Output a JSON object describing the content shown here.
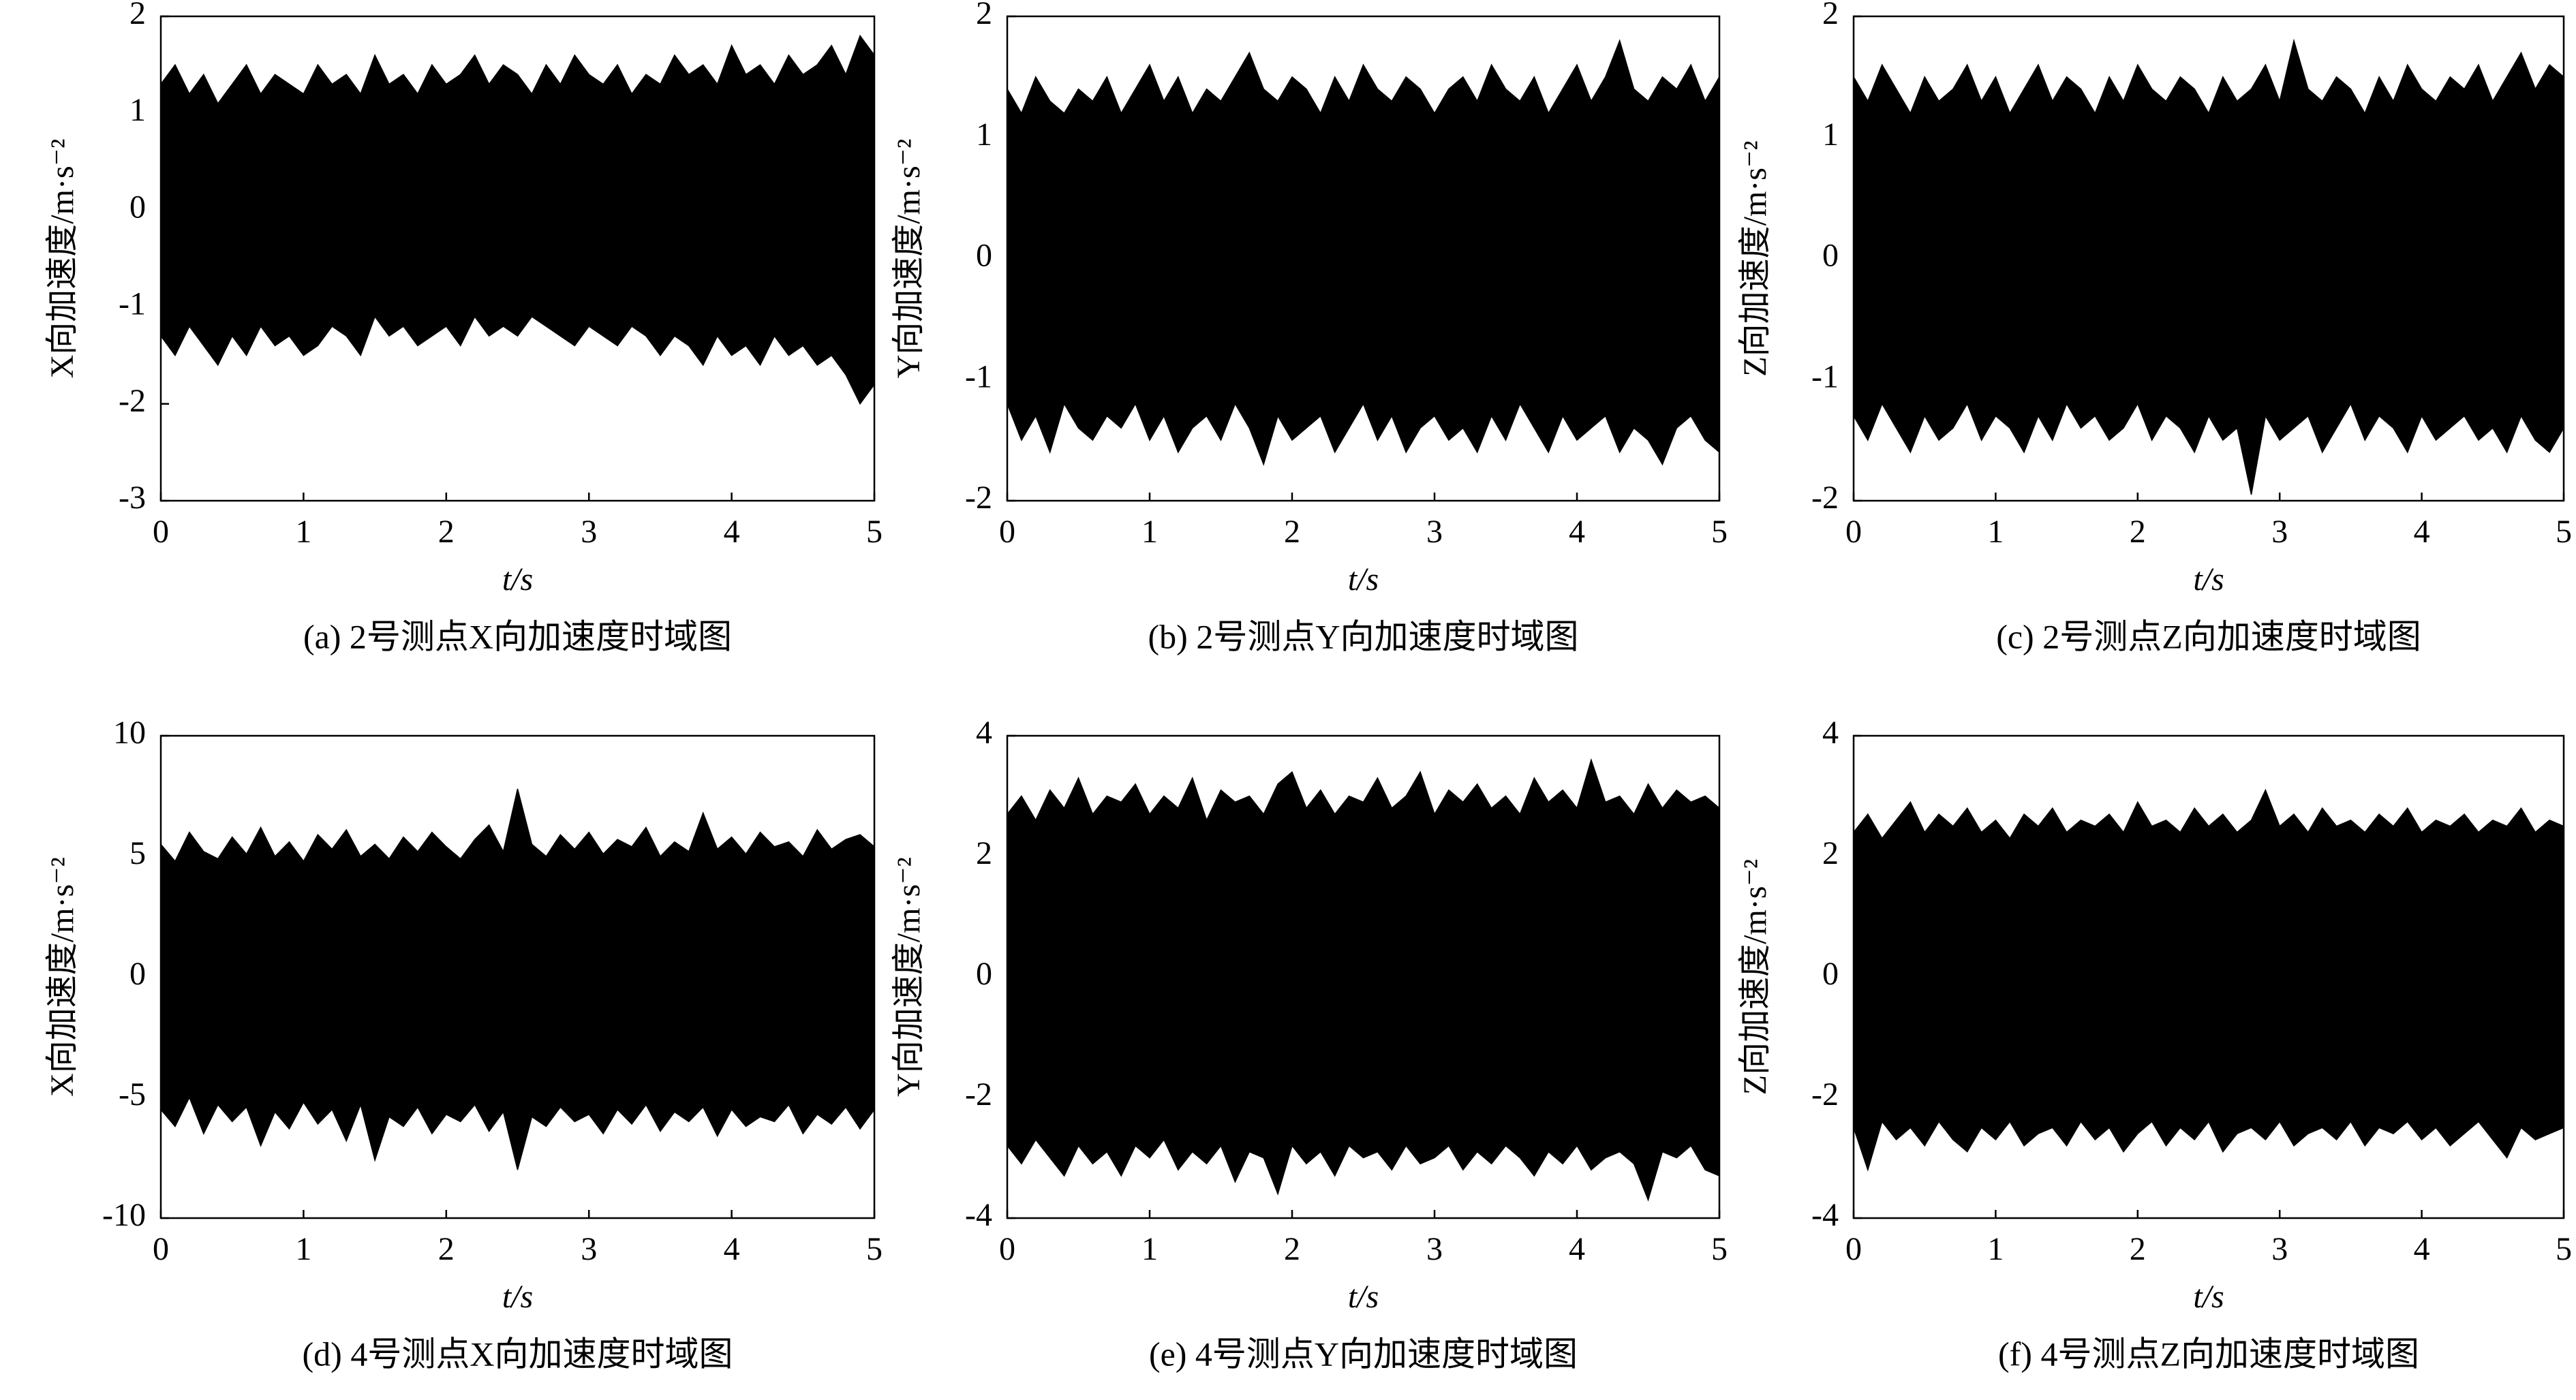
{
  "chart_data": [
    {
      "type": "area",
      "color": "#000000",
      "caption": "(a) 2号测点X向加速度时域图",
      "x_label": "t/s",
      "y_label": "X向加速度/m·s⁻²",
      "xlim": [
        0,
        5
      ],
      "xticks": [
        0,
        1,
        2,
        3,
        4,
        5
      ],
      "ylim": [
        -3,
        2
      ],
      "yticks": [
        -3,
        -2,
        -1,
        0,
        1,
        2
      ],
      "x": [
        0,
        0.1,
        0.2,
        0.3,
        0.4,
        0.5,
        0.6,
        0.7,
        0.8,
        0.9,
        1,
        1.1,
        1.2,
        1.3,
        1.4,
        1.5,
        1.6,
        1.7,
        1.8,
        1.9,
        2,
        2.1,
        2.2,
        2.3,
        2.4,
        2.5,
        2.6,
        2.7,
        2.8,
        2.9,
        3,
        3.1,
        3.2,
        3.3,
        3.4,
        3.5,
        3.6,
        3.7,
        3.8,
        3.9,
        4,
        4.1,
        4.2,
        4.3,
        4.4,
        4.5,
        4.6,
        4.7,
        4.8,
        4.9,
        5
      ],
      "upper": [
        1.3,
        1.5,
        1.2,
        1.4,
        1.1,
        1.3,
        1.5,
        1.2,
        1.4,
        1.3,
        1.2,
        1.5,
        1.3,
        1.4,
        1.2,
        1.6,
        1.3,
        1.4,
        1.2,
        1.5,
        1.3,
        1.4,
        1.6,
        1.3,
        1.5,
        1.4,
        1.2,
        1.5,
        1.3,
        1.6,
        1.4,
        1.3,
        1.5,
        1.2,
        1.4,
        1.3,
        1.6,
        1.4,
        1.5,
        1.3,
        1.7,
        1.4,
        1.5,
        1.3,
        1.6,
        1.4,
        1.5,
        1.7,
        1.4,
        1.8,
        1.6
      ],
      "lower": [
        -1.3,
        -1.5,
        -1.2,
        -1.4,
        -1.6,
        -1.3,
        -1.5,
        -1.2,
        -1.4,
        -1.3,
        -1.5,
        -1.4,
        -1.2,
        -1.3,
        -1.5,
        -1.1,
        -1.3,
        -1.2,
        -1.4,
        -1.3,
        -1.2,
        -1.4,
        -1.1,
        -1.3,
        -1.2,
        -1.3,
        -1.1,
        -1.2,
        -1.3,
        -1.4,
        -1.2,
        -1.3,
        -1.4,
        -1.2,
        -1.3,
        -1.5,
        -1.3,
        -1.4,
        -1.6,
        -1.3,
        -1.5,
        -1.4,
        -1.6,
        -1.3,
        -1.5,
        -1.4,
        -1.6,
        -1.5,
        -1.7,
        -2.0,
        -1.8
      ]
    },
    {
      "type": "area",
      "color": "#000000",
      "caption": "(b) 2号测点Y向加速度时域图",
      "x_label": "t/s",
      "y_label": "Y向加速度/m·s⁻²",
      "xlim": [
        0,
        5
      ],
      "xticks": [
        0,
        1,
        2,
        3,
        4,
        5
      ],
      "ylim": [
        -2,
        2
      ],
      "yticks": [
        -2,
        -1,
        0,
        1,
        2
      ],
      "x": [
        0,
        0.1,
        0.2,
        0.3,
        0.4,
        0.5,
        0.6,
        0.7,
        0.8,
        0.9,
        1,
        1.1,
        1.2,
        1.3,
        1.4,
        1.5,
        1.6,
        1.7,
        1.8,
        1.9,
        2,
        2.1,
        2.2,
        2.3,
        2.4,
        2.5,
        2.6,
        2.7,
        2.8,
        2.9,
        3,
        3.1,
        3.2,
        3.3,
        3.4,
        3.5,
        3.6,
        3.7,
        3.8,
        3.9,
        4,
        4.1,
        4.2,
        4.3,
        4.4,
        4.5,
        4.6,
        4.7,
        4.8,
        4.9,
        5
      ],
      "upper": [
        1.4,
        1.2,
        1.5,
        1.3,
        1.2,
        1.4,
        1.3,
        1.5,
        1.2,
        1.4,
        1.6,
        1.3,
        1.5,
        1.2,
        1.4,
        1.3,
        1.5,
        1.7,
        1.4,
        1.3,
        1.5,
        1.4,
        1.2,
        1.5,
        1.3,
        1.6,
        1.4,
        1.3,
        1.5,
        1.4,
        1.2,
        1.4,
        1.5,
        1.3,
        1.6,
        1.4,
        1.3,
        1.5,
        1.2,
        1.4,
        1.6,
        1.3,
        1.5,
        1.8,
        1.4,
        1.3,
        1.5,
        1.4,
        1.6,
        1.3,
        1.5
      ],
      "lower": [
        -1.2,
        -1.5,
        -1.3,
        -1.6,
        -1.2,
        -1.4,
        -1.5,
        -1.3,
        -1.4,
        -1.2,
        -1.5,
        -1.3,
        -1.6,
        -1.4,
        -1.3,
        -1.5,
        -1.2,
        -1.4,
        -1.7,
        -1.3,
        -1.5,
        -1.4,
        -1.3,
        -1.6,
        -1.4,
        -1.2,
        -1.5,
        -1.3,
        -1.6,
        -1.4,
        -1.3,
        -1.5,
        -1.4,
        -1.6,
        -1.3,
        -1.5,
        -1.2,
        -1.4,
        -1.6,
        -1.3,
        -1.5,
        -1.4,
        -1.3,
        -1.6,
        -1.4,
        -1.5,
        -1.7,
        -1.4,
        -1.3,
        -1.5,
        -1.6
      ]
    },
    {
      "type": "area",
      "color": "#000000",
      "caption": "(c) 2号测点Z向加速度时域图",
      "x_label": "t/s",
      "y_label": "Z向加速度/m·s⁻²",
      "xlim": [
        0,
        5
      ],
      "xticks": [
        0,
        1,
        2,
        3,
        4,
        5
      ],
      "ylim": [
        -2,
        2
      ],
      "yticks": [
        -2,
        -1,
        0,
        1,
        2
      ],
      "x": [
        0,
        0.1,
        0.2,
        0.3,
        0.4,
        0.5,
        0.6,
        0.7,
        0.8,
        0.9,
        1,
        1.1,
        1.2,
        1.3,
        1.4,
        1.5,
        1.6,
        1.7,
        1.8,
        1.9,
        2,
        2.1,
        2.2,
        2.3,
        2.4,
        2.5,
        2.6,
        2.7,
        2.8,
        2.9,
        3,
        3.1,
        3.2,
        3.3,
        3.4,
        3.5,
        3.6,
        3.7,
        3.8,
        3.9,
        4,
        4.1,
        4.2,
        4.3,
        4.4,
        4.5,
        4.6,
        4.7,
        4.8,
        4.9,
        5
      ],
      "upper": [
        1.5,
        1.3,
        1.6,
        1.4,
        1.2,
        1.5,
        1.3,
        1.4,
        1.6,
        1.3,
        1.5,
        1.2,
        1.4,
        1.6,
        1.3,
        1.5,
        1.4,
        1.2,
        1.5,
        1.3,
        1.6,
        1.4,
        1.3,
        1.5,
        1.4,
        1.2,
        1.5,
        1.3,
        1.4,
        1.6,
        1.3,
        1.8,
        1.4,
        1.3,
        1.5,
        1.4,
        1.2,
        1.5,
        1.3,
        1.6,
        1.4,
        1.3,
        1.5,
        1.4,
        1.6,
        1.3,
        1.5,
        1.7,
        1.4,
        1.6,
        1.5
      ],
      "lower": [
        -1.3,
        -1.5,
        -1.2,
        -1.4,
        -1.6,
        -1.3,
        -1.5,
        -1.4,
        -1.2,
        -1.5,
        -1.3,
        -1.4,
        -1.6,
        -1.3,
        -1.5,
        -1.2,
        -1.4,
        -1.3,
        -1.5,
        -1.4,
        -1.2,
        -1.5,
        -1.3,
        -1.4,
        -1.6,
        -1.3,
        -1.5,
        -1.4,
        -1.95,
        -1.3,
        -1.5,
        -1.4,
        -1.3,
        -1.6,
        -1.4,
        -1.2,
        -1.5,
        -1.3,
        -1.4,
        -1.6,
        -1.3,
        -1.5,
        -1.4,
        -1.3,
        -1.5,
        -1.4,
        -1.6,
        -1.3,
        -1.5,
        -1.6,
        -1.4
      ]
    },
    {
      "type": "area",
      "color": "#000000",
      "caption": "(d) 4号测点X向加速度时域图",
      "x_label": "t/s",
      "y_label": "X向加速度/m·s⁻²",
      "xlim": [
        0,
        5
      ],
      "xticks": [
        0,
        1,
        2,
        3,
        4,
        5
      ],
      "ylim": [
        -10,
        10
      ],
      "yticks": [
        -10,
        -5,
        0,
        5,
        10
      ],
      "x": [
        0,
        0.1,
        0.2,
        0.3,
        0.4,
        0.5,
        0.6,
        0.7,
        0.8,
        0.9,
        1,
        1.1,
        1.2,
        1.3,
        1.4,
        1.5,
        1.6,
        1.7,
        1.8,
        1.9,
        2,
        2.1,
        2.2,
        2.3,
        2.4,
        2.5,
        2.6,
        2.7,
        2.8,
        2.9,
        3,
        3.1,
        3.2,
        3.3,
        3.4,
        3.5,
        3.6,
        3.7,
        3.8,
        3.9,
        4,
        4.1,
        4.2,
        4.3,
        4.4,
        4.5,
        4.6,
        4.7,
        4.8,
        4.9,
        5
      ],
      "upper": [
        5.5,
        4.8,
        6.0,
        5.2,
        4.9,
        5.8,
        5.1,
        6.2,
        5.0,
        5.6,
        4.8,
        5.9,
        5.3,
        6.1,
        5.0,
        5.5,
        4.9,
        5.8,
        5.2,
        6.0,
        5.4,
        4.9,
        5.7,
        6.3,
        5.2,
        7.8,
        5.5,
        5.0,
        5.9,
        5.3,
        6.0,
        5.1,
        5.7,
        5.4,
        6.2,
        5.0,
        5.6,
        5.2,
        6.8,
        5.3,
        5.8,
        5.1,
        6.0,
        5.4,
        5.6,
        5.0,
        6.1,
        5.3,
        5.7,
        5.9,
        5.4
      ],
      "lower": [
        -5.5,
        -6.2,
        -5.0,
        -6.5,
        -5.3,
        -6.0,
        -5.4,
        -7.0,
        -5.6,
        -6.3,
        -5.2,
        -6.1,
        -5.5,
        -6.8,
        -5.3,
        -7.6,
        -5.8,
        -6.2,
        -5.4,
        -6.5,
        -5.7,
        -6.0,
        -5.3,
        -6.4,
        -5.6,
        -8.0,
        -5.8,
        -6.2,
        -5.4,
        -6.0,
        -5.7,
        -6.5,
        -5.5,
        -6.1,
        -5.3,
        -6.4,
        -5.6,
        -6.0,
        -5.4,
        -6.6,
        -5.5,
        -6.2,
        -5.8,
        -6.0,
        -5.3,
        -6.5,
        -5.7,
        -6.1,
        -5.4,
        -6.3,
        -5.5
      ]
    },
    {
      "type": "area",
      "color": "#000000",
      "caption": "(e) 4号测点Y向加速度时域图",
      "x_label": "t/s",
      "y_label": "Y向加速度/m·s⁻²",
      "xlim": [
        0,
        5
      ],
      "xticks": [
        0,
        1,
        2,
        3,
        4,
        5
      ],
      "ylim": [
        -4,
        4
      ],
      "yticks": [
        -4,
        -2,
        0,
        2,
        4
      ],
      "x": [
        0,
        0.1,
        0.2,
        0.3,
        0.4,
        0.5,
        0.6,
        0.7,
        0.8,
        0.9,
        1,
        1.1,
        1.2,
        1.3,
        1.4,
        1.5,
        1.6,
        1.7,
        1.8,
        1.9,
        2,
        2.1,
        2.2,
        2.3,
        2.4,
        2.5,
        2.6,
        2.7,
        2.8,
        2.9,
        3,
        3.1,
        3.2,
        3.3,
        3.4,
        3.5,
        3.6,
        3.7,
        3.8,
        3.9,
        4,
        4.1,
        4.2,
        4.3,
        4.4,
        4.5,
        4.6,
        4.7,
        4.8,
        4.9,
        5
      ],
      "upper": [
        2.7,
        3.0,
        2.6,
        3.1,
        2.8,
        3.3,
        2.7,
        3.0,
        2.9,
        3.2,
        2.7,
        3.0,
        2.8,
        3.3,
        2.6,
        3.1,
        2.9,
        3.0,
        2.7,
        3.2,
        3.4,
        2.8,
        3.1,
        2.7,
        3.0,
        2.9,
        3.3,
        2.8,
        3.0,
        3.4,
        2.7,
        3.1,
        2.9,
        3.2,
        2.8,
        3.0,
        2.7,
        3.3,
        2.9,
        3.1,
        2.8,
        3.6,
        2.9,
        3.0,
        2.7,
        3.2,
        2.8,
        3.1,
        2.9,
        3.0,
        2.8
      ],
      "lower": [
        -2.8,
        -3.1,
        -2.7,
        -3.0,
        -3.3,
        -2.8,
        -3.1,
        -2.9,
        -3.3,
        -2.8,
        -3.0,
        -2.7,
        -3.2,
        -2.9,
        -3.1,
        -2.8,
        -3.4,
        -2.9,
        -3.0,
        -3.6,
        -2.8,
        -3.1,
        -2.9,
        -3.3,
        -2.8,
        -3.0,
        -2.9,
        -3.2,
        -2.8,
        -3.1,
        -3.0,
        -2.8,
        -3.2,
        -2.9,
        -3.1,
        -2.8,
        -3.0,
        -3.3,
        -2.9,
        -3.1,
        -2.8,
        -3.2,
        -3.0,
        -2.9,
        -3.1,
        -3.7,
        -2.9,
        -3.0,
        -2.8,
        -3.2,
        -3.3
      ]
    },
    {
      "type": "area",
      "color": "#000000",
      "caption": "(f) 4号测点Z向加速度时域图",
      "x_label": "t/s",
      "y_label": "Z向加速度/m·s⁻²",
      "xlim": [
        0,
        5
      ],
      "xticks": [
        0,
        1,
        2,
        3,
        4,
        5
      ],
      "ylim": [
        -4,
        4
      ],
      "yticks": [
        -4,
        -2,
        0,
        2,
        4
      ],
      "x": [
        0,
        0.1,
        0.2,
        0.3,
        0.4,
        0.5,
        0.6,
        0.7,
        0.8,
        0.9,
        1,
        1.1,
        1.2,
        1.3,
        1.4,
        1.5,
        1.6,
        1.7,
        1.8,
        1.9,
        2,
        2.1,
        2.2,
        2.3,
        2.4,
        2.5,
        2.6,
        2.7,
        2.8,
        2.9,
        3,
        3.1,
        3.2,
        3.3,
        3.4,
        3.5,
        3.6,
        3.7,
        3.8,
        3.9,
        4,
        4.1,
        4.2,
        4.3,
        4.4,
        4.5,
        4.6,
        4.7,
        4.8,
        4.9,
        5
      ],
      "upper": [
        2.4,
        2.7,
        2.3,
        2.6,
        2.9,
        2.4,
        2.7,
        2.5,
        2.8,
        2.4,
        2.6,
        2.3,
        2.7,
        2.5,
        2.8,
        2.4,
        2.6,
        2.5,
        2.7,
        2.4,
        2.9,
        2.5,
        2.6,
        2.4,
        2.8,
        2.5,
        2.7,
        2.4,
        2.6,
        3.1,
        2.5,
        2.7,
        2.4,
        2.8,
        2.5,
        2.6,
        2.4,
        2.7,
        2.5,
        2.8,
        2.4,
        2.6,
        2.5,
        2.7,
        2.4,
        2.6,
        2.5,
        2.8,
        2.4,
        2.6,
        2.5
      ],
      "lower": [
        -2.5,
        -3.2,
        -2.4,
        -2.7,
        -2.5,
        -2.8,
        -2.4,
        -2.7,
        -2.9,
        -2.5,
        -2.7,
        -2.4,
        -2.8,
        -2.6,
        -2.5,
        -2.8,
        -2.4,
        -2.7,
        -2.5,
        -2.9,
        -2.6,
        -2.4,
        -2.8,
        -2.5,
        -2.7,
        -2.4,
        -2.9,
        -2.6,
        -2.5,
        -2.7,
        -2.4,
        -2.8,
        -2.6,
        -2.5,
        -2.7,
        -2.4,
        -2.8,
        -2.5,
        -2.6,
        -2.4,
        -2.7,
        -2.5,
        -2.8,
        -2.6,
        -2.4,
        -2.7,
        -3.0,
        -2.5,
        -2.7,
        -2.6,
        -2.5
      ]
    }
  ]
}
